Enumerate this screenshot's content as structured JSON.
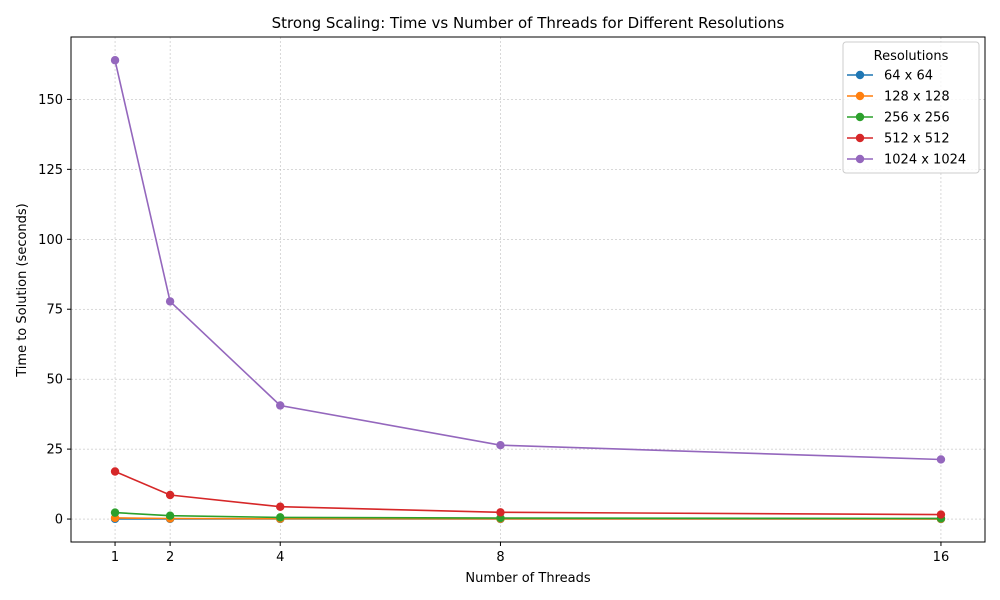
{
  "chart_data": {
    "type": "line",
    "title": "Strong Scaling: Time vs Number of Threads for Different Resolutions",
    "xlabel": "Number of Threads",
    "ylabel": "Time to Solution (seconds)",
    "x": [
      1,
      2,
      4,
      8,
      16
    ],
    "xticks": [
      1,
      2,
      4,
      8,
      16
    ],
    "xtick_labels": [
      "1",
      "2",
      "4",
      "8",
      "16"
    ],
    "xlim": [
      0.2,
      16.8
    ],
    "yticks": [
      0,
      25,
      50,
      75,
      100,
      125,
      150
    ],
    "ytick_labels": [
      "0",
      "25",
      "50",
      "75",
      "100",
      "125",
      "150"
    ],
    "ylim": [
      -8.2,
      172.3
    ],
    "grid": true,
    "legend": {
      "title": "Resolutions",
      "position": "top-right"
    },
    "series": [
      {
        "name": "64 x 64",
        "color": "#1f77b4",
        "values": [
          0.07,
          0.04,
          0.03,
          0.02,
          0.02
        ]
      },
      {
        "name": "128 x 128",
        "color": "#ff7f0e",
        "values": [
          0.4,
          0.2,
          0.12,
          0.08,
          0.07
        ]
      },
      {
        "name": "256 x 256",
        "color": "#2ca02c",
        "values": [
          2.3,
          1.2,
          0.6,
          0.35,
          0.25
        ]
      },
      {
        "name": "512 x 512",
        "color": "#d62728",
        "values": [
          17.0,
          8.6,
          4.4,
          2.4,
          1.6
        ]
      },
      {
        "name": "1024 x 1024",
        "color": "#9467bd",
        "values": [
          164.0,
          77.8,
          40.6,
          26.4,
          21.3
        ]
      }
    ]
  }
}
